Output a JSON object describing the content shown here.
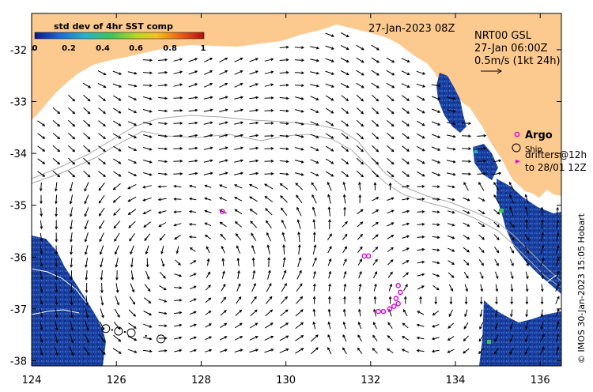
{
  "colorbar": {
    "title": "std dev of 4hr SST comp",
    "ticks": [
      "0",
      "0.2",
      "0.4",
      "0.6",
      "0.8",
      "1"
    ],
    "colors": [
      "#0a1a8c",
      "#1f6bd6",
      "#27b3c9",
      "#3cc45a",
      "#b7d826",
      "#f5c21a",
      "#e8611a",
      "#b01010"
    ]
  },
  "header": {
    "date": "27-Jan-2023 08Z",
    "product": "NRT00 GSL",
    "product_time": "27-Jan 06:00Z",
    "scale_label": "0.5m/s (1kt 24h)"
  },
  "legend": {
    "argo": "Argo",
    "ship": "Ship",
    "drifters_line1": "drifters@12h",
    "drifters_line2": "to 28/01 12Z"
  },
  "axes": {
    "x_ticks": [
      "124",
      "126",
      "128",
      "130",
      "132",
      "134",
      "136"
    ],
    "y_ticks": [
      "-32",
      "-33",
      "-34",
      "-35",
      "-36",
      "-37",
      "-38"
    ],
    "lon_range": [
      124,
      136.5
    ],
    "lat_range": [
      -38.1,
      -31.3
    ]
  },
  "credit": "© IMOS 30-Jan-2023 15:05 Hobart",
  "colors": {
    "land": "#fcc98f",
    "sst_patch": "#1b3f9e",
    "argo": "#e100e1",
    "contour": "#a8a8a8"
  },
  "argo_floats": [
    {
      "lon": 128.5,
      "lat": -35.12
    },
    {
      "lon": 131.85,
      "lat": -35.98
    },
    {
      "lon": 131.95,
      "lat": -35.98
    },
    {
      "lon": 132.65,
      "lat": -36.55
    },
    {
      "lon": 132.7,
      "lat": -36.68
    },
    {
      "lon": 132.6,
      "lat": -36.8
    },
    {
      "lon": 132.65,
      "lat": -36.9
    },
    {
      "lon": 132.55,
      "lat": -36.95
    },
    {
      "lon": 132.45,
      "lat": -37.0
    },
    {
      "lon": 132.3,
      "lat": -37.05
    },
    {
      "lon": 132.18,
      "lat": -37.05
    }
  ],
  "ships": [
    {
      "lon": 125.75,
      "lat": -37.38
    },
    {
      "lon": 126.05,
      "lat": -37.43
    },
    {
      "lon": 126.35,
      "lat": -37.46
    },
    {
      "lon": 127.05,
      "lat": -37.58
    }
  ]
}
